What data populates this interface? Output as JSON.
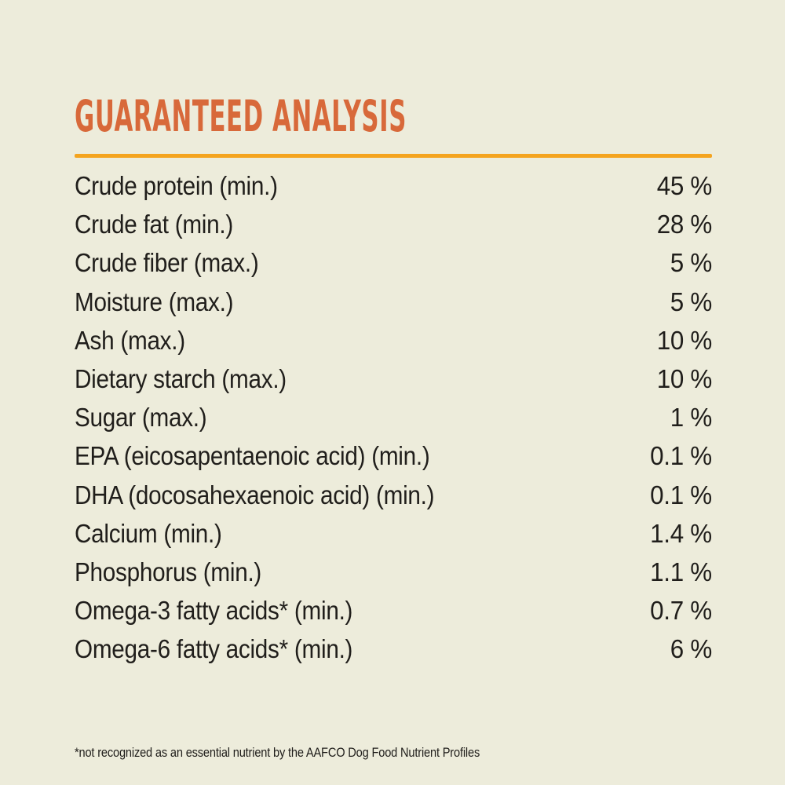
{
  "theme": {
    "bg": "#edecdb",
    "ink": "#201e1b",
    "accent_orange": "#d8693a",
    "rule_amber": "#f4a41f"
  },
  "analysis": {
    "heading": "GUARANTEED ANALYSIS",
    "rows": [
      {
        "label": "Crude protein (min.)",
        "value": "45 %"
      },
      {
        "label": "Crude fat (min.)",
        "value": "28 %"
      },
      {
        "label": "Crude fiber (max.)",
        "value": "5 %"
      },
      {
        "label": "Moisture (max.)",
        "value": "5 %"
      },
      {
        "label": "Ash (max.)",
        "value": "10 %"
      },
      {
        "label": "Dietary starch (max.)",
        "value": "10 %"
      },
      {
        "label": "Sugar (max.)",
        "value": "1 %"
      },
      {
        "label": "EPA (eicosapentaenoic acid) (min.)",
        "value": "0.1 %"
      },
      {
        "label": "DHA (docosahexaenoic acid) (min.)",
        "value": "0.1 %"
      },
      {
        "label": "Calcium (min.)",
        "value": "1.4 %"
      },
      {
        "label": "Phosphorus (min.)",
        "value": "1.1 %"
      },
      {
        "label": "Omega-3 fatty acids* (min.)",
        "value": "0.7 %"
      },
      {
        "label": "Omega-6 fatty acids* (min.)",
        "value": "6 %"
      }
    ],
    "footnote": "*not recognized as an essential nutrient by the AAFCO Dog Food Nutrient Profiles"
  }
}
